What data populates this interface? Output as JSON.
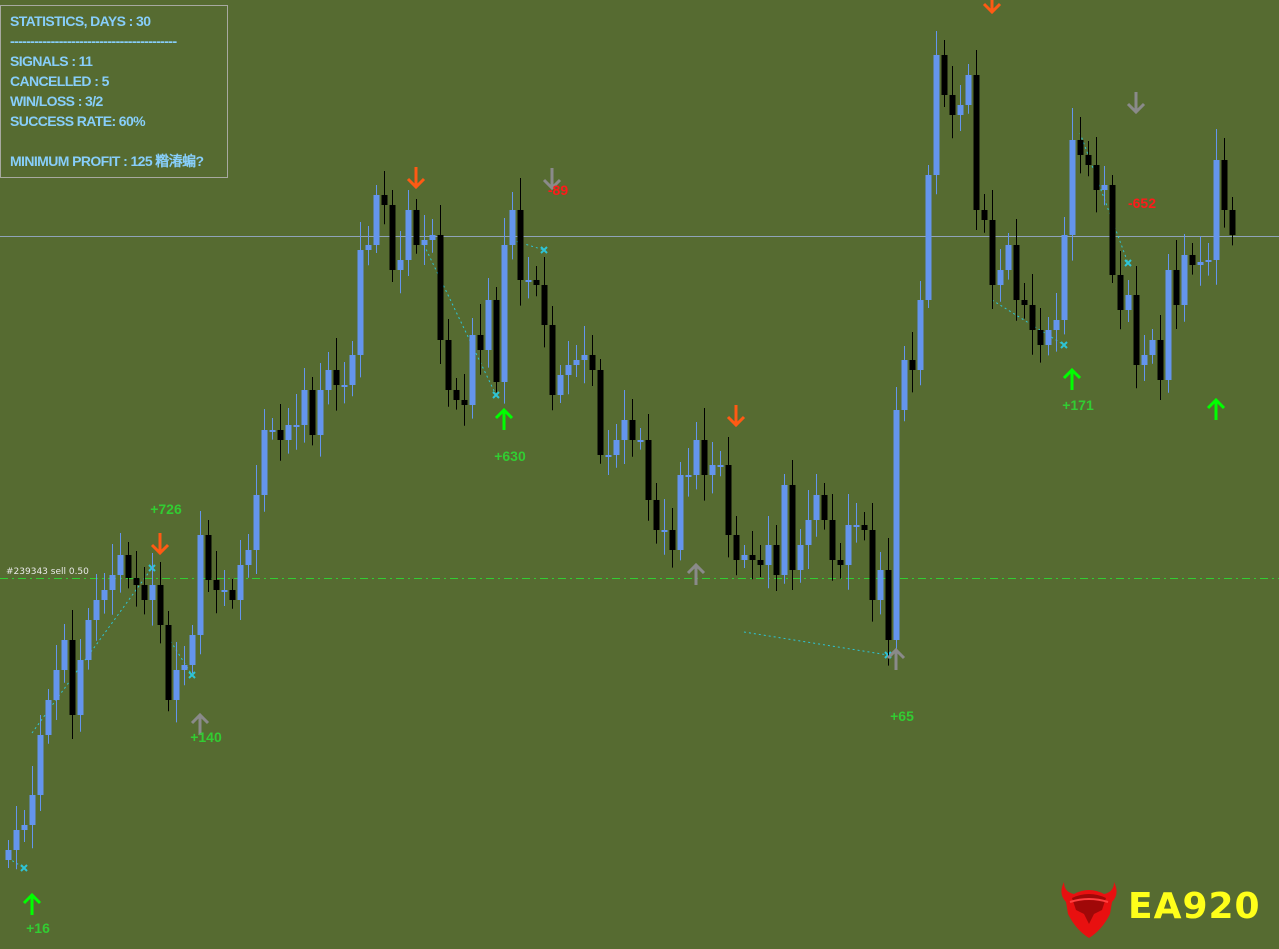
{
  "stats": {
    "title": "STATISTICS, DAYS : 30",
    "separator": "-----------------------------------------",
    "signals": "SIGNALS : 11",
    "cancelled": "CANCELLED : 5",
    "win_loss": "WIN/LOSS : 3/2",
    "success_rate": "SUCCESS RATE: 60%",
    "minimum_profit": "MINIMUM PROFIT : 125 糌湷蝙?"
  },
  "trade_line": {
    "label": "#239343 sell 0.50",
    "price": 422,
    "color": "#32cd32"
  },
  "reference_line": {
    "price": 764,
    "color": "#8fa3b8"
  },
  "logo": {
    "text": "EA920"
  },
  "colors": {
    "background": "#566b31",
    "bull": "#6495ed",
    "bear": "#000000",
    "buy_arrow": "#00ff00",
    "sell_arrow": "#ff5a14",
    "cancelled_arrow": "#8a8a8a",
    "profit_text": "#32cd32",
    "loss_text": "#ff1a1a",
    "trade_marker": "#2ec4d6"
  },
  "chart_data": {
    "type": "candlestick",
    "title": "",
    "xlabel": "",
    "ylabel": "",
    "grid": false,
    "closes": [
      150,
      170,
      175,
      205,
      265,
      300,
      330,
      360,
      285,
      340,
      380,
      400,
      410,
      425,
      445,
      422,
      415,
      400,
      415,
      375,
      300,
      330,
      335,
      365,
      465,
      420,
      410,
      410,
      400,
      435,
      450,
      505,
      570,
      570,
      560,
      575,
      575,
      610,
      565,
      610,
      630,
      615,
      615,
      645,
      750,
      755,
      805,
      795,
      730,
      740,
      790,
      755,
      760,
      765,
      660,
      610,
      600,
      595,
      665,
      650,
      700,
      618,
      755,
      790,
      720,
      720,
      715,
      675,
      605,
      625,
      635,
      640,
      645,
      630,
      545,
      545,
      560,
      580,
      560,
      560,
      500,
      470,
      470,
      450,
      525,
      525,
      560,
      525,
      535,
      535,
      465,
      440,
      445,
      440,
      435,
      455,
      425,
      515,
      430,
      455,
      480,
      505,
      480,
      440,
      435,
      475,
      475,
      470,
      400,
      430,
      360,
      590,
      640,
      630,
      700,
      825,
      945,
      905,
      885,
      895,
      925,
      790,
      780,
      715,
      730,
      755,
      700,
      695,
      670,
      655,
      670,
      680,
      765,
      860,
      845,
      835,
      810,
      815,
      725,
      690,
      705,
      635,
      645,
      660,
      620,
      730,
      695,
      745,
      735,
      738,
      740,
      840,
      790,
      765
    ],
    "first_open": 140,
    "signals": [
      {
        "index": 3,
        "price": 95,
        "kind": "buy",
        "label": "+16",
        "label_price": 72,
        "result": "profit"
      },
      {
        "index": 19,
        "price": 457,
        "kind": "sell",
        "label": "+726",
        "label_price": 491,
        "result": "profit"
      },
      {
        "index": 24,
        "price": 275,
        "kind": "cancelled-buy",
        "label": "+140",
        "label_price": 263,
        "result": "profit"
      },
      {
        "index": 51,
        "price": 823,
        "kind": "sell",
        "label": "",
        "label_price": null,
        "result": ""
      },
      {
        "index": 62,
        "price": 580,
        "kind": "buy",
        "label": "+630",
        "label_price": 544,
        "result": "profit"
      },
      {
        "index": 68,
        "price": 822,
        "kind": "cancelled-sell",
        "label": "-89",
        "label_price": 810,
        "result": "loss"
      },
      {
        "index": 86,
        "price": 425,
        "kind": "cancelled-buy",
        "label": "",
        "label_price": null,
        "result": ""
      },
      {
        "index": 91,
        "price": 585,
        "kind": "sell",
        "label": "",
        "label_price": null,
        "result": ""
      },
      {
        "index": 111,
        "price": 340,
        "kind": "cancelled-buy",
        "label": "+65",
        "label_price": 284,
        "result": "profit"
      },
      {
        "index": 123,
        "price": 998,
        "kind": "sell",
        "label": "",
        "label_price": null,
        "result": ""
      },
      {
        "index": 133,
        "price": 620,
        "kind": "buy",
        "label": "+171",
        "label_price": 595,
        "result": "profit"
      },
      {
        "index": 141,
        "price": 898,
        "kind": "cancelled-sell",
        "label": "-652",
        "label_price": 797,
        "result": "loss"
      },
      {
        "index": 151,
        "price": 590,
        "kind": "buy",
        "label": "",
        "label_price": null,
        "result": ""
      }
    ],
    "trades": [
      {
        "from_index": 0,
        "from_price": 142,
        "to_index": 2,
        "to_price": 132
      },
      {
        "from_index": 3,
        "from_price": 267,
        "to_index": 18,
        "to_price": 432
      },
      {
        "from_index": 20,
        "from_price": 363,
        "to_index": 23,
        "to_price": 325
      },
      {
        "from_index": 52,
        "from_price": 755,
        "to_index": 61,
        "to_price": 605
      },
      {
        "from_index": 63,
        "from_price": 760,
        "to_index": 67,
        "to_price": 750
      },
      {
        "from_index": 92,
        "from_price": 368,
        "to_index": 110,
        "to_price": 345
      },
      {
        "from_index": 123,
        "from_price": 700,
        "to_index": 132,
        "to_price": 655
      },
      {
        "from_index": 134,
        "from_price": 867,
        "to_index": 140,
        "to_price": 737
      }
    ]
  }
}
